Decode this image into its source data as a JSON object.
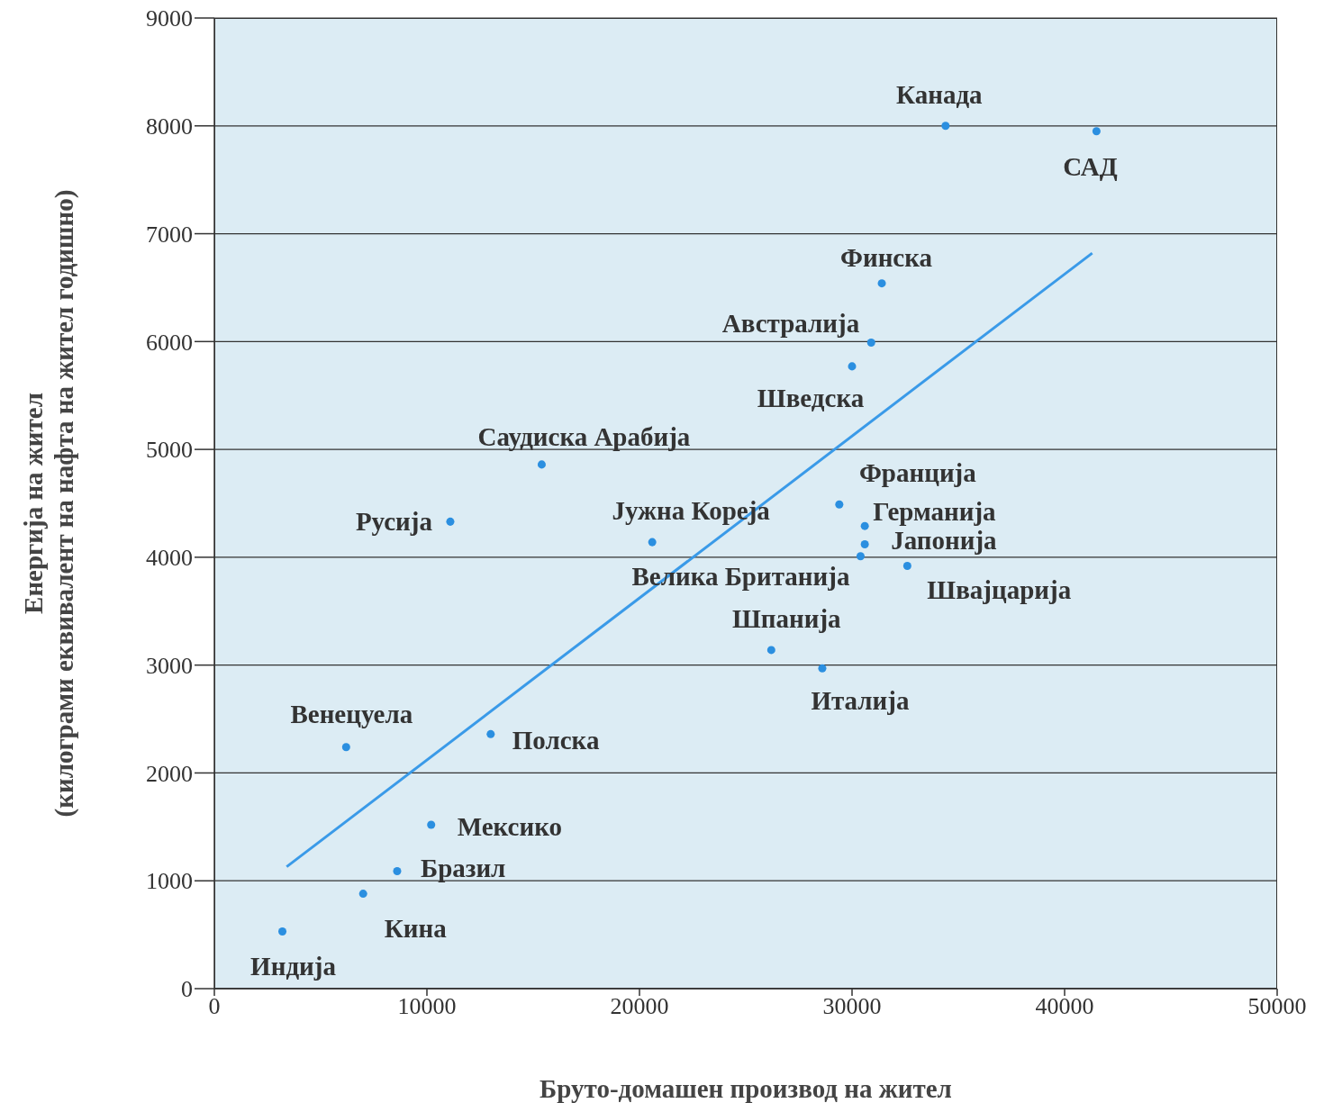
{
  "chart_data": {
    "type": "scatter",
    "xlabel": "Бруто-домашен производ на жител",
    "ylabel": "Енергија на жител\n(килограми еквивалент на нафта на жител годишно)",
    "xlim": [
      0,
      50000
    ],
    "xticks": [
      0,
      10000,
      20000,
      30000,
      40000,
      50000
    ],
    "ylim": [
      0,
      9000
    ],
    "yticks": [
      0,
      1000,
      2000,
      3000,
      4000,
      5000,
      6000,
      7000,
      8000,
      9000
    ],
    "grid": "y",
    "series": [
      {
        "marker": "circle",
        "color": "#2b8fe0",
        "x": [
          34400,
          41500,
          31400,
          30900,
          30000,
          15400,
          11100,
          20600,
          29400,
          30600,
          30600,
          30400,
          32600,
          26200,
          28600,
          6200,
          13000,
          10200,
          8600,
          7000,
          3200
        ],
        "values": [
          8000,
          7950,
          6540,
          5990,
          5770,
          4860,
          4330,
          4140,
          4490,
          4290,
          4120,
          4010,
          3920,
          3140,
          2970,
          2240,
          2360,
          1520,
          1090,
          880,
          530
        ]
      },
      {
        "type": "line",
        "marker": "none",
        "line_style": "solid",
        "color": "#3a9ae8",
        "x": [
          3400,
          41300
        ],
        "values": [
          1130,
          6820
        ]
      }
    ],
    "annotations": [
      {
        "text": "Канада",
        "x": 34400,
        "y": 8000
      },
      {
        "text": "САД",
        "x": 41500,
        "y": 7950
      },
      {
        "text": "Финска",
        "x": 31400,
        "y": 6540
      },
      {
        "text": "Австралија",
        "x": 30900,
        "y": 5990
      },
      {
        "text": "Шведска",
        "x": 30000,
        "y": 5770
      },
      {
        "text": "Саудиска Арабија",
        "x": 15400,
        "y": 4860
      },
      {
        "text": "Русија",
        "x": 11100,
        "y": 4330
      },
      {
        "text": "Јужна Кореја",
        "x": 20600,
        "y": 4140
      },
      {
        "text": "Франција",
        "x": 29400,
        "y": 4490
      },
      {
        "text": "Германија",
        "x": 30600,
        "y": 4290
      },
      {
        "text": "Јапонија",
        "x": 30600,
        "y": 4120
      },
      {
        "text": "Велика Британија",
        "x": 30400,
        "y": 4010
      },
      {
        "text": "Швајцарија",
        "x": 32600,
        "y": 3920
      },
      {
        "text": "Шпанија",
        "x": 26200,
        "y": 3140
      },
      {
        "text": "Италија",
        "x": 28600,
        "y": 2970
      },
      {
        "text": "Венецуела",
        "x": 6200,
        "y": 2240
      },
      {
        "text": "Полска",
        "x": 13000,
        "y": 2360
      },
      {
        "text": "Мексико",
        "x": 10200,
        "y": 1520
      },
      {
        "text": "Бразил",
        "x": 8600,
        "y": 1090
      },
      {
        "text": "Кина",
        "x": 7000,
        "y": 880
      },
      {
        "text": "Индија",
        "x": 3200,
        "y": 530
      }
    ]
  }
}
